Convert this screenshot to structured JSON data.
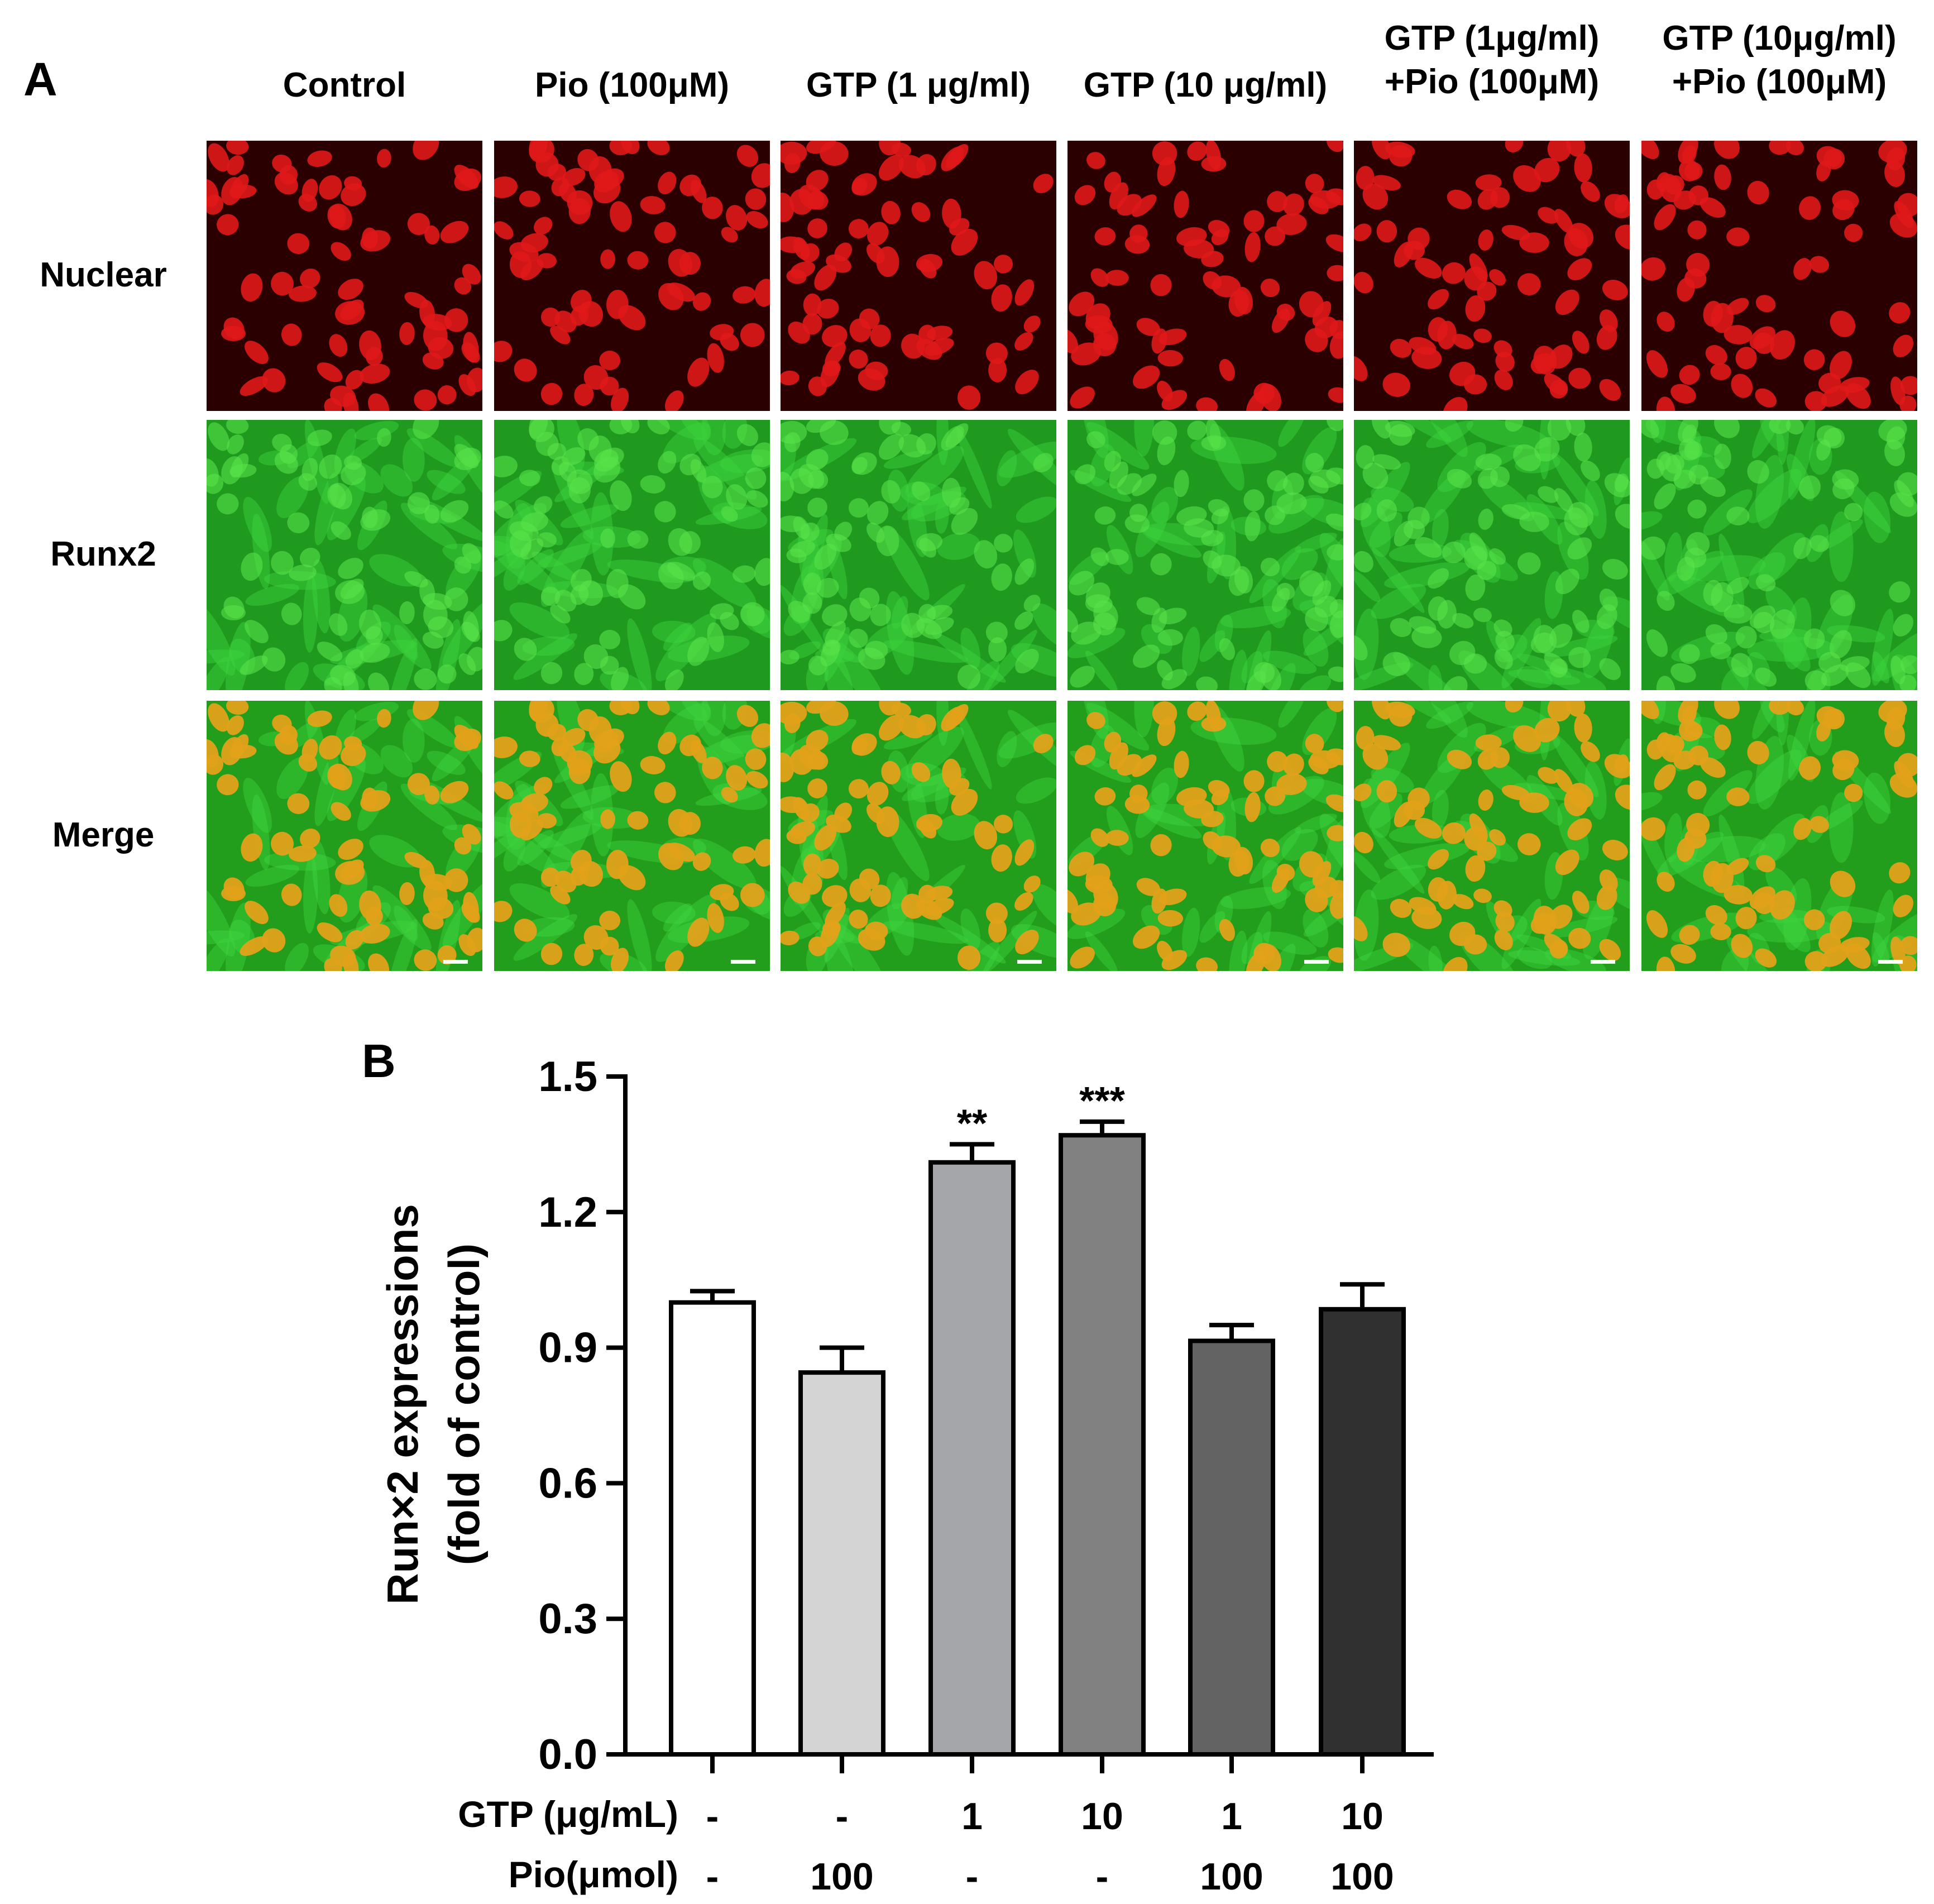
{
  "figure": {
    "panel_a": {
      "letter": "A",
      "column_headers": [
        [
          "Control"
        ],
        [
          "Pio (100μM)"
        ],
        [
          "GTP (1 μg/ml)"
        ],
        [
          "GTP (10 μg/ml)"
        ],
        [
          "GTP (1μg/ml)",
          "+Pio (100μM)"
        ],
        [
          "GTP (10μg/ml)",
          "+Pio (100μM)"
        ]
      ],
      "row_labels": [
        "Nuclear",
        "Runx2",
        "Merge"
      ],
      "row_channels": [
        "red",
        "green",
        "merge"
      ]
    },
    "panel_b": {
      "letter": "B"
    }
  },
  "chart_data": {
    "type": "bar",
    "ylabel_lines": [
      "Run×2 expressions",
      "(fold of control)"
    ],
    "ylim": [
      0,
      1.5
    ],
    "yticks": [
      "0.0",
      "0.3",
      "0.6",
      "0.9",
      "1.2",
      "1.5"
    ],
    "values": [
      1.0,
      0.845,
      1.31,
      1.37,
      0.915,
      0.985
    ],
    "errors": [
      0.025,
      0.055,
      0.04,
      0.03,
      0.035,
      0.055
    ],
    "significance": [
      "",
      "",
      "**",
      "***",
      "",
      ""
    ],
    "bar_colors": [
      "#ffffff",
      "#d4d4d4",
      "#a5a6a9",
      "#818181",
      "#636363",
      "#303030"
    ],
    "treatment_rows": [
      {
        "label": "GTP (μg/mL)",
        "values": [
          "-",
          "-",
          "1",
          "10",
          "1",
          "10"
        ]
      },
      {
        "label": "Pio(μmol)",
        "values": [
          "-",
          "100",
          "-",
          "-",
          "100",
          "100"
        ]
      }
    ]
  }
}
